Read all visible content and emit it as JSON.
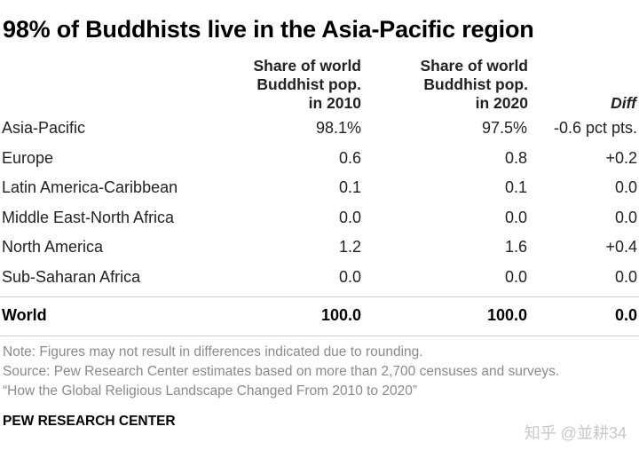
{
  "chart_data": {
    "type": "table",
    "title": "98% of Buddhists live in the Asia-Pacific region",
    "columns": [
      {
        "lines": [
          "Share of world",
          "Buddhist pop.",
          "in 2010"
        ]
      },
      {
        "lines": [
          "Share of world",
          "Buddhist pop.",
          "in 2020"
        ]
      },
      {
        "lines": [
          "Diff"
        ]
      }
    ],
    "rows": [
      {
        "region": "Asia-Pacific",
        "v2010": "98.1%",
        "v2020": "97.5%",
        "diff": "-0.6 pct pts."
      },
      {
        "region": "Europe",
        "v2010": "0.6",
        "v2020": "0.8",
        "diff": "+0.2"
      },
      {
        "region": "Latin America-Caribbean",
        "v2010": "0.1",
        "v2020": "0.1",
        "diff": "0.0"
      },
      {
        "region": "Middle East-North Africa",
        "v2010": "0.0",
        "v2020": "0.0",
        "diff": "0.0"
      },
      {
        "region": "North America",
        "v2010": "1.2",
        "v2020": "1.6",
        "diff": "+0.4"
      },
      {
        "region": "Sub-Saharan Africa",
        "v2010": "0.0",
        "v2020": "0.0",
        "diff": "0.0"
      }
    ],
    "total": {
      "region": "World",
      "v2010": "100.0",
      "v2020": "100.0",
      "diff": "0.0"
    }
  },
  "notes": {
    "note": "Note: Figures may not result in differences indicated due to rounding.",
    "source": "Source: Pew Research Center estimates based on more than 2,700 censuses and surveys.",
    "report": "“How the Global Religious Landscape Changed From 2010 to 2020”"
  },
  "footer": "PEW RESEARCH CENTER",
  "watermark": "知乎 @並耕34",
  "colors": {
    "text": "#222222",
    "note": "#8a8a8a",
    "divider": "#cfcfcf"
  }
}
